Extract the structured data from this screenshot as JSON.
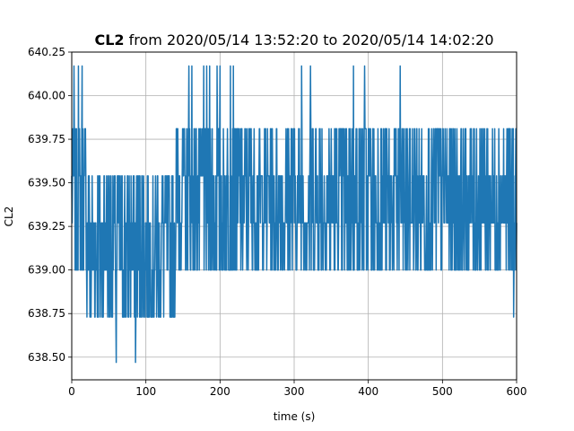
{
  "chart_data": {
    "type": "line",
    "title_bold": "CL2",
    "title_rest": " from 2020/05/14 13:52:20 to 2020/05/14 14:02:20",
    "xlabel": "time (s)",
    "ylabel": "CL2",
    "xlim": [
      0,
      600
    ],
    "ylim": [
      638.37,
      640.25
    ],
    "xticks": [
      0,
      100,
      200,
      300,
      400,
      500,
      600
    ],
    "xtick_labels": [
      "0",
      "100",
      "200",
      "300",
      "400",
      "500",
      "600"
    ],
    "yticks": [
      638.5,
      638.75,
      639.0,
      639.25,
      639.5,
      639.75,
      640.0,
      640.25
    ],
    "ytick_labels": [
      "638.50",
      "638.75",
      "639.00",
      "639.25",
      "639.50",
      "639.75",
      "640.00",
      "640.25"
    ],
    "grid": true,
    "line_color": "#1f77b4",
    "quantized_levels": [
      638.47,
      638.73,
      639.0,
      639.27,
      639.54,
      639.81,
      640.17
    ],
    "segments": [
      {
        "x_range": [
          0,
          20
        ],
        "low": 639.0,
        "high": 639.81,
        "spikes": [
          [
            3,
            640.17
          ],
          [
            9,
            640.17
          ],
          [
            14,
            640.17
          ]
        ]
      },
      {
        "x_range": [
          20,
          140
        ],
        "low": 638.73,
        "high": 639.54,
        "spikes": [
          [
            26,
            638.73
          ],
          [
            60,
            638.47
          ],
          [
            86,
            638.47
          ]
        ]
      },
      {
        "x_range": [
          140,
          168
        ],
        "low": 639.0,
        "high": 639.81,
        "spikes": [
          [
            158,
            640.17
          ],
          [
            162,
            640.17
          ]
        ]
      },
      {
        "x_range": [
          168,
          600
        ],
        "low": 639.0,
        "high": 639.81,
        "spikes": [
          [
            178,
            640.17
          ],
          [
            182,
            640.17
          ],
          [
            186,
            640.17
          ],
          [
            196,
            640.17
          ],
          [
            200,
            640.17
          ],
          [
            214,
            640.17
          ],
          [
            218,
            640.17
          ],
          [
            310,
            640.17
          ],
          [
            322,
            640.17
          ],
          [
            380,
            640.17
          ],
          [
            395,
            640.17
          ],
          [
            443,
            640.17
          ],
          [
            596,
            638.73
          ]
        ]
      }
    ]
  }
}
